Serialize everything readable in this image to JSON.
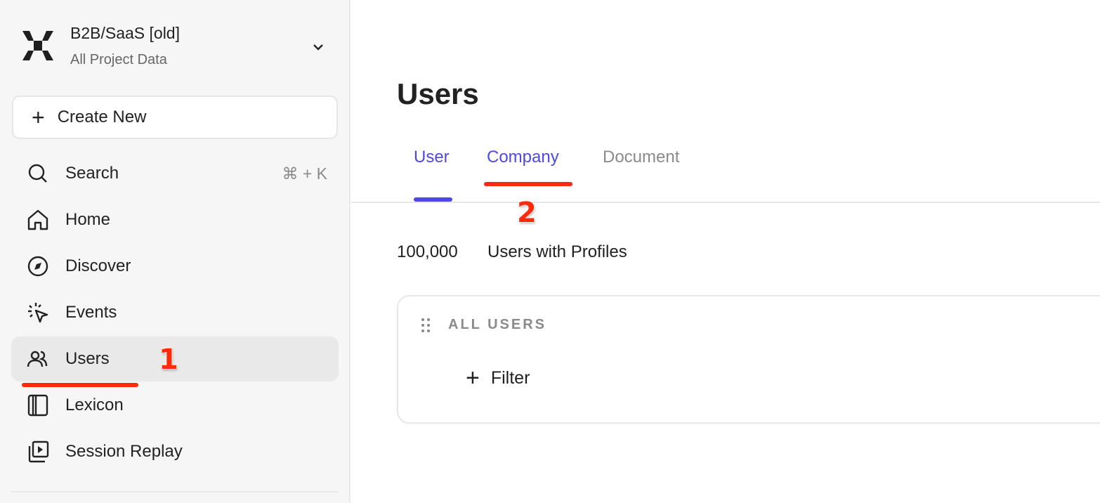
{
  "sidebar": {
    "project_title": "B2B/SaaS [old]",
    "project_subtitle": "All Project Data",
    "create_label": "Create New",
    "items": [
      {
        "label": "Search",
        "icon": "search-icon",
        "shortcut": "⌘ + K"
      },
      {
        "label": "Home",
        "icon": "home-icon"
      },
      {
        "label": "Discover",
        "icon": "compass-icon"
      },
      {
        "label": "Events",
        "icon": "cursor-click-icon"
      },
      {
        "label": "Users",
        "icon": "users-icon",
        "active": true
      },
      {
        "label": "Lexicon",
        "icon": "book-icon"
      },
      {
        "label": "Session Replay",
        "icon": "play-stack-icon"
      }
    ]
  },
  "main": {
    "title": "Users",
    "tabs": [
      {
        "label": "User",
        "active": true
      },
      {
        "label": "Company"
      },
      {
        "label": "Document"
      }
    ],
    "count": "100,000",
    "count_label": "Users with Profiles",
    "card": {
      "heading": "ALL USERS",
      "filter_label": "Filter"
    }
  },
  "annotations": {
    "step1": "1",
    "step2": "2"
  },
  "colors": {
    "accent": "#5048e5",
    "annotation": "#ff2a0a",
    "sidebar_bg": "#f6f6f6"
  }
}
